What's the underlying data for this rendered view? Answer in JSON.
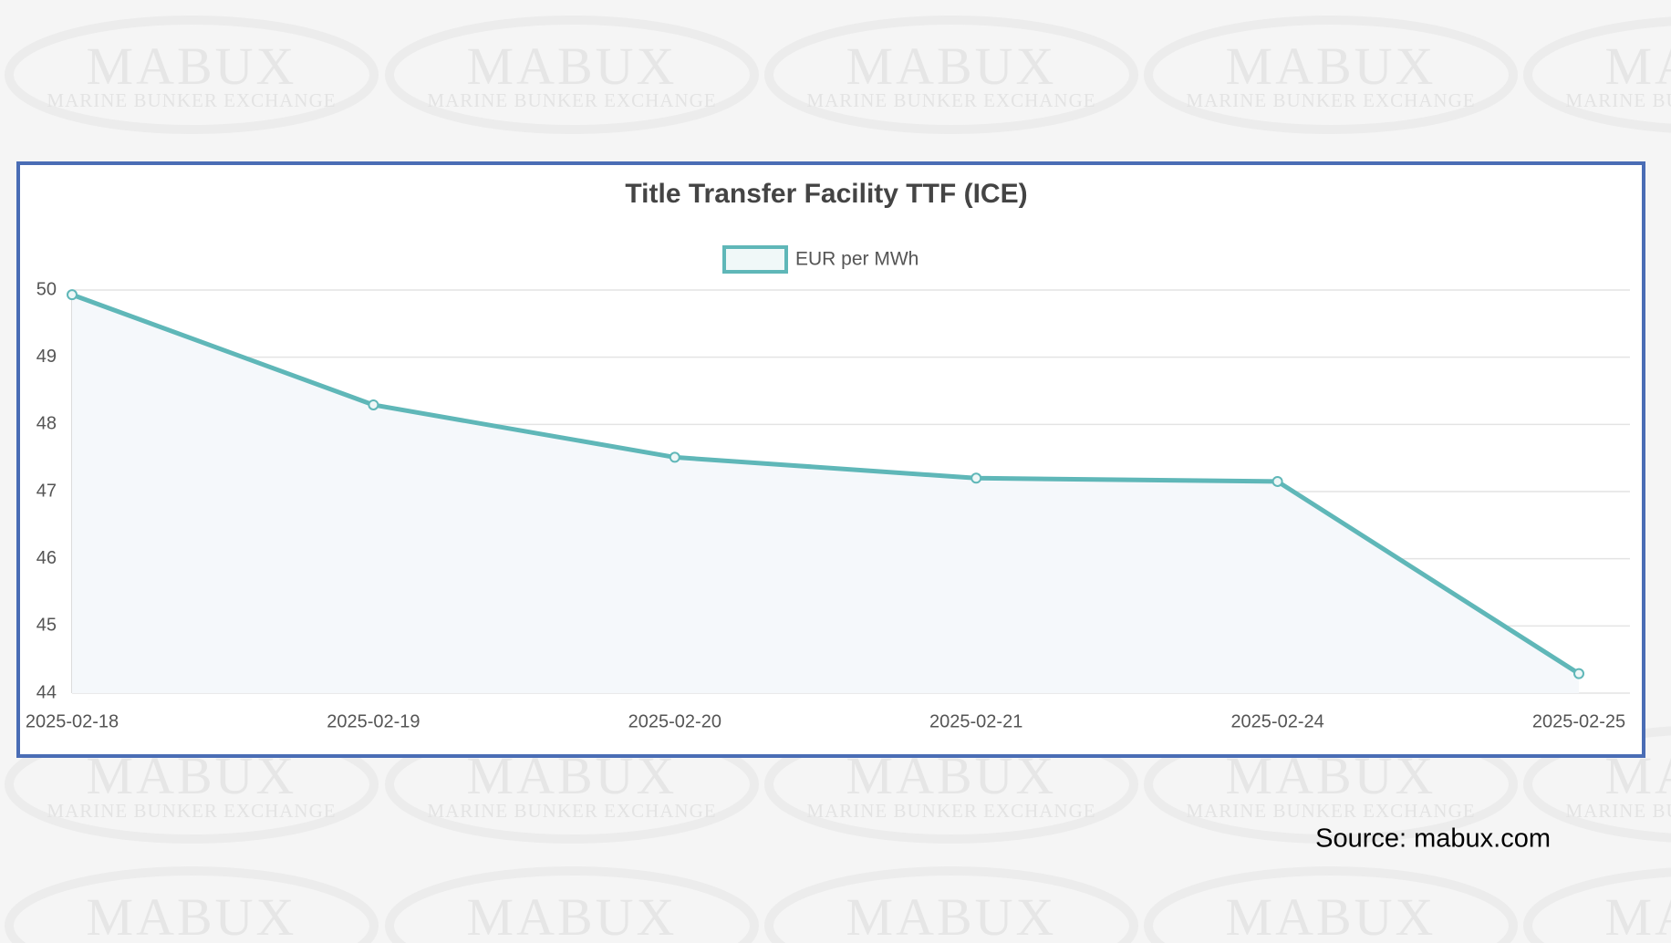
{
  "watermark": {
    "logo": "MABUX",
    "tagline": "MARINE BUNKER EXCHANGE"
  },
  "source": "Source: mabux.com",
  "chart_data": {
    "type": "line",
    "title": "Title Transfer Facility TTF (ICE)",
    "categories": [
      "2025-02-18",
      "2025-02-19",
      "2025-02-20",
      "2025-02-21",
      "2025-02-24",
      "2025-02-25"
    ],
    "series": [
      {
        "name": "EUR per MWh",
        "color": "#5fb7b8",
        "values": [
          49.93,
          48.29,
          47.51,
          47.2,
          47.15,
          44.29
        ]
      }
    ],
    "ylim": [
      44,
      50
    ],
    "yticks": [
      44,
      45,
      46,
      47,
      48,
      49,
      50
    ],
    "grid": true,
    "legend": "top"
  }
}
